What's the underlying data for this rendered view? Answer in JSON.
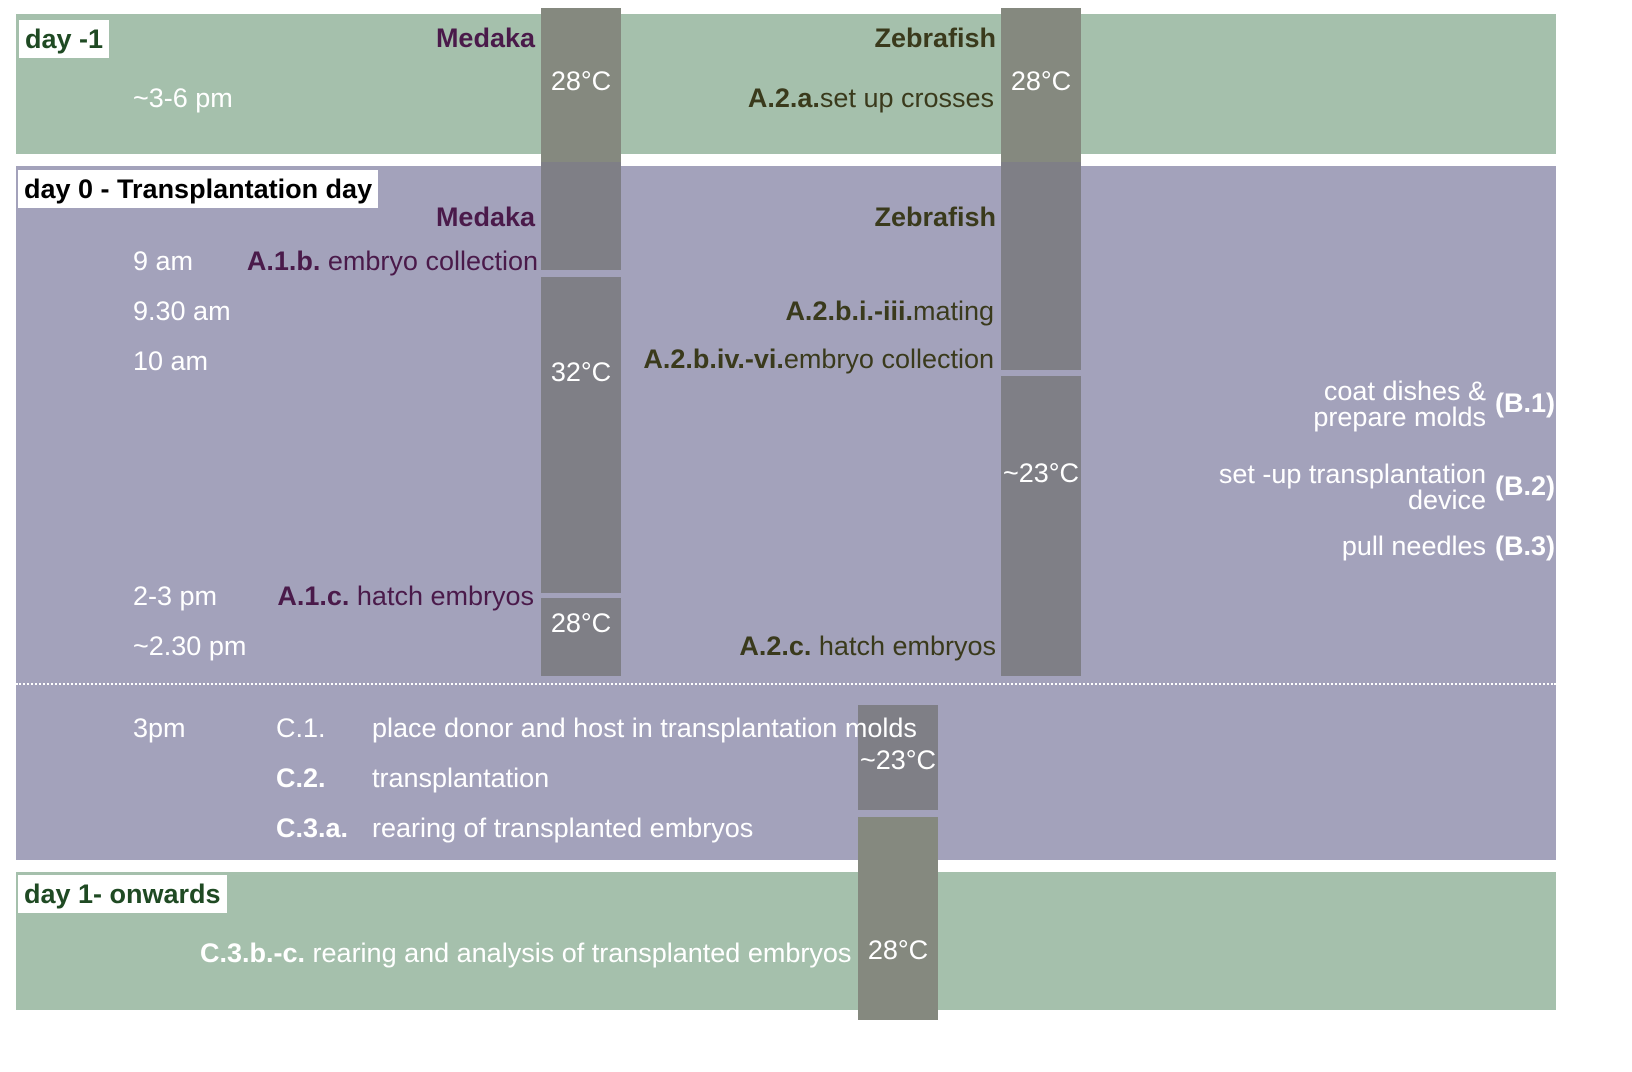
{
  "colors": {
    "green_band": "#a5c0ac",
    "purple_band": "#a3a2bb",
    "temp_column": "#7f7f86",
    "medaka_text": "#4a1a4a",
    "zebrafish_text": "#3a3a1c"
  },
  "day_minus1": {
    "label": "day -1",
    "medaka_header": "Medaka",
    "zebrafish_header": "Zebrafish",
    "time": "~3-6 pm",
    "zebrafish_step_code": "A.2.a.",
    "zebrafish_step_text": "set up crosses",
    "temp_medaka": "28°C",
    "temp_zebrafish": "28°C"
  },
  "day_0": {
    "label": "day 0 - Transplantation day",
    "medaka_header": "Medaka",
    "zebrafish_header": "Zebrafish",
    "times": [
      "9 am",
      "9.30 am",
      "10 am",
      "2-3 pm",
      "~2.30 pm"
    ],
    "medaka_steps": [
      {
        "code": "A.1.b.",
        "text": "embryo collection"
      },
      {
        "code": "A.1.c.",
        "text": "hatch embryos"
      }
    ],
    "zebrafish_steps": [
      {
        "code": "A.2.b.i.-iii.",
        "text": "mating"
      },
      {
        "code": "A.2.b.iv.-vi.",
        "text": "embryo collection"
      },
      {
        "code": "A.2.c.",
        "text": "hatch embryos"
      }
    ],
    "temps_medaka": [
      "32°C",
      "28°C"
    ],
    "temps_zebrafish": [
      "~23°C"
    ],
    "prep_tasks": [
      {
        "line1": "coat dishes &",
        "line2": "prepare molds",
        "ref": "(B.1)"
      },
      {
        "line1": "set -up transplantation",
        "line2": "device",
        "ref": "(B.2)"
      },
      {
        "line1": "pull needles",
        "line2": "",
        "ref": "(B.3)"
      }
    ],
    "transplant_time": "3pm",
    "transplant_steps": [
      {
        "code": "C.1.",
        "text": "place donor and host in transplantation molds"
      },
      {
        "code": "C.2.",
        "text": "transplantation"
      },
      {
        "code": "C.3.a.",
        "text": "rearing of transplanted embryos"
      }
    ],
    "temp_transplant": "~23°C"
  },
  "day_1": {
    "label": "day 1- onwards",
    "step_code": "C.3.b.-c.",
    "step_text": "rearing and analysis of transplanted embryos",
    "temp": "28°C"
  }
}
